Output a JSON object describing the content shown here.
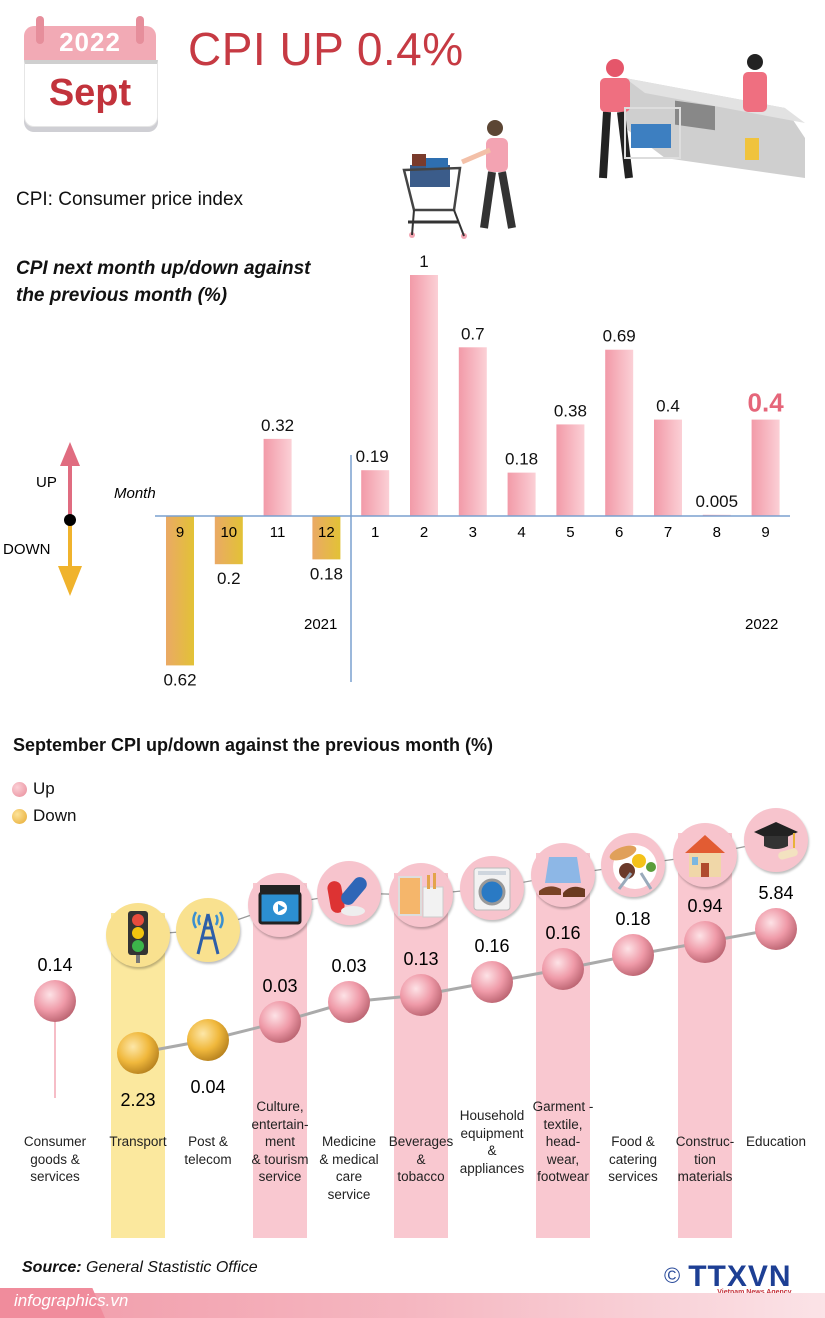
{
  "header": {
    "calendar_year": "2022",
    "calendar_month": "Sept",
    "title": "CPI UP 0.4%",
    "subtitle": "CPI: Consumer price index"
  },
  "colors": {
    "up": "#f4a3b0",
    "down": "#e6b13c",
    "title_red": "#c63a43",
    "highlight": "#e5667a",
    "axis": "#7aa0cf"
  },
  "monthly_chart": {
    "title_line1": "CPI next month up/down against",
    "title_line2": "the previous month (%)",
    "legend_up": "UP",
    "legend_down": "DOWN",
    "x_axis_label": "Month",
    "year_labels": [
      "2021",
      "2022"
    ]
  },
  "category_chart": {
    "title": "September CPI up/down against the previous month (%)",
    "legend": [
      {
        "label": "Up",
        "color": "#f19aa8"
      },
      {
        "label": "Down",
        "color": "#f2bd45"
      }
    ]
  },
  "chart_data": [
    {
      "type": "bar",
      "title": "CPI next month up/down against the previous month (%)",
      "xlabel": "Month",
      "ylabel": "",
      "categories": [
        "9",
        "10",
        "11",
        "12",
        "1",
        "2",
        "3",
        "4",
        "5",
        "6",
        "7",
        "8",
        "9"
      ],
      "years": [
        "2021",
        "2021",
        "2021",
        "2021",
        "2022",
        "2022",
        "2022",
        "2022",
        "2022",
        "2022",
        "2022",
        "2022",
        "2022"
      ],
      "values": [
        -0.62,
        -0.2,
        0.32,
        -0.18,
        0.19,
        1,
        0.7,
        0.18,
        0.38,
        0.69,
        0.4,
        0.005,
        0.4
      ],
      "labels": [
        "0.62",
        "0.2",
        "0.32",
        "0.18",
        "0.19",
        "1",
        "0.7",
        "0.18",
        "0.38",
        "0.69",
        "0.4",
        "0.005",
        "0.4"
      ],
      "highlight_index": 12,
      "ylim": [
        -0.7,
        1.05
      ],
      "grid": false
    },
    {
      "type": "scatter",
      "title": "September CPI up/down against the previous month (%)",
      "categories": [
        "Consumer goods & services",
        "Transport",
        "Post & telecom",
        "Culture, entertain-ment & tourism service",
        "Medicine & medical care service",
        "Beverages & tobacco",
        "Household equipment & appliances",
        "Garment - textile, head-wear, footwear",
        "Food & catering services",
        "Construc-tion materials",
        "Education"
      ],
      "label_lines": [
        [
          "Consumer",
          "goods &",
          "services"
        ],
        [
          "Transport"
        ],
        [
          "Post &",
          "telecom"
        ],
        [
          "Culture,",
          "entertain-",
          "ment",
          "& tourism",
          "service"
        ],
        [
          "Medicine",
          "& medical",
          "care",
          "service"
        ],
        [
          "Beverages",
          "&",
          "tobacco"
        ],
        [
          "Household",
          "equipment",
          "&",
          "appliances"
        ],
        [
          "Garment -",
          "textile,",
          "head-",
          "wear,",
          "footwear"
        ],
        [
          "Food &",
          "catering",
          "services"
        ],
        [
          "Construc-",
          "tion",
          "materials"
        ],
        [
          "Education"
        ]
      ],
      "values": [
        0.14,
        -2.23,
        -0.04,
        0.03,
        0.03,
        0.13,
        0.16,
        0.16,
        0.18,
        0.94,
        5.84
      ],
      "labels": [
        "0.14",
        "2.23",
        "0.04",
        "0.03",
        "0.03",
        "0.13",
        "0.16",
        "0.16",
        "0.18",
        "0.94",
        "5.84"
      ],
      "direction": [
        "up",
        "down",
        "down",
        "up",
        "up",
        "up",
        "up",
        "up",
        "up",
        "up",
        "up"
      ],
      "icons": [
        "",
        "traffic-light-icon",
        "radio-tower-icon",
        "clapperboard-icon",
        "pills-icon",
        "beverage-cigarette-icon",
        "washing-machine-icon",
        "shirt-shoes-icon",
        "food-plate-icon",
        "house-icon",
        "graduation-cap-icon"
      ],
      "highlighted_columns": [
        1,
        3,
        5,
        7,
        9
      ]
    }
  ],
  "footer": {
    "source_label": "Source:",
    "source_value": "General Stastistic Office",
    "site": "infographics.vn",
    "copyright_symbol": "©",
    "agency_logo": "TTXVN",
    "agency_name": "Vietnam News Agency"
  }
}
